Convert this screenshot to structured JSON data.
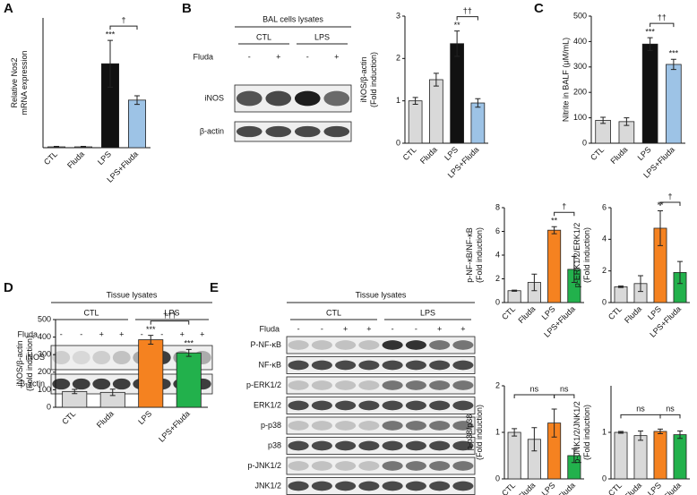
{
  "panels": [
    "A",
    "B",
    "C",
    "D",
    "E"
  ],
  "blots": [
    {
      "title": "BAL cells lysates",
      "groups": [
        "CTL",
        "LPS"
      ],
      "treatment": "Fluda",
      "signs": [
        "-",
        "+",
        "-",
        "+"
      ],
      "rows": [
        "iNOS",
        "β-actin"
      ]
    },
    {
      "title": "Tissue lysates",
      "groups": [
        "CTL",
        "LPS"
      ],
      "treatment": "Fluda",
      "signs": [
        "-",
        "-",
        "+",
        "+",
        "-",
        "-",
        "+",
        "+"
      ],
      "rows": [
        "iNOS",
        "β-actin"
      ]
    },
    {
      "title": "Tissue lysates",
      "groups": [
        "CTL",
        "LPS"
      ],
      "treatment": "Fluda",
      "signs": [
        "-",
        "-",
        "+",
        "+",
        "-",
        "-",
        "+",
        "+"
      ],
      "rows": [
        "P-NF-κB",
        "NF-κB",
        "p-ERK1/2",
        "ERK1/2",
        "p-p38",
        "p38",
        "p-JNK1/2",
        "JNK1/2"
      ]
    }
  ],
  "chart_data": [
    {
      "type": "bar",
      "ylabel": [
        "Relative Nos2",
        "mRNA expression"
      ],
      "categories": [
        "CTL",
        "Fluda",
        "LPS",
        "LPS+Fluda"
      ],
      "values": [
        1,
        1,
        97,
        55
      ],
      "errors": [
        0.5,
        0.5,
        27,
        5
      ],
      "colors": [
        "#d9d9d9",
        "#d9d9d9",
        "#111111",
        "#9dc3e6"
      ],
      "ylim": [
        0,
        150
      ],
      "annotations": [
        {
          "text": "***",
          "at": "LPS"
        },
        {
          "text": "†",
          "between": [
            "LPS",
            "LPS+Fluda"
          ]
        }
      ]
    },
    {
      "type": "bar",
      "ylabel": [
        "iNOS/β-actin",
        "(Fold induction)"
      ],
      "categories": [
        "CTL",
        "Fluda",
        "LPS",
        "LPS+Fluda"
      ],
      "values": [
        1.0,
        1.5,
        2.35,
        0.95
      ],
      "errors": [
        0.08,
        0.15,
        0.3,
        0.1
      ],
      "colors": [
        "#d9d9d9",
        "#d9d9d9",
        "#111111",
        "#9dc3e6"
      ],
      "ylim": [
        0,
        3
      ],
      "yticks": [
        0,
        1,
        2,
        3
      ],
      "annotations": [
        {
          "text": "**",
          "at": "LPS"
        },
        {
          "text": "††",
          "between": [
            "LPS",
            "LPS+Fluda"
          ]
        }
      ]
    },
    {
      "type": "bar",
      "ylabel": [
        "Nitrite in BALF (μM/mL)"
      ],
      "categories": [
        "CTL",
        "Fluda",
        "LPS",
        "LPS+Fluda"
      ],
      "values": [
        90,
        85,
        390,
        310
      ],
      "errors": [
        12,
        15,
        25,
        20
      ],
      "colors": [
        "#d9d9d9",
        "#d9d9d9",
        "#111111",
        "#9dc3e6"
      ],
      "ylim": [
        0,
        500
      ],
      "yticks": [
        0,
        100,
        200,
        300,
        400,
        500
      ],
      "annotations": [
        {
          "text": "***",
          "at": "LPS"
        },
        {
          "text": "***",
          "at": "LPS+Fluda"
        },
        {
          "text": "††",
          "between": [
            "LPS",
            "LPS+Fluda"
          ]
        }
      ]
    },
    {
      "type": "bar",
      "ylabel": [
        "iNOS/β-actin",
        "(Fold induction)"
      ],
      "categories": [
        "CTL",
        "Fluda",
        "LPS",
        "LPS+Fluda"
      ],
      "values": [
        90,
        85,
        385,
        310
      ],
      "errors": [
        12,
        18,
        25,
        20
      ],
      "colors": [
        "#d9d9d9",
        "#d9d9d9",
        "#f58220",
        "#22b14c"
      ],
      "ylim": [
        0,
        500
      ],
      "yticks": [
        0,
        100,
        200,
        300,
        400,
        500
      ],
      "annotations": [
        {
          "text": "***",
          "at": "LPS"
        },
        {
          "text": "***",
          "at": "LPS+Fluda"
        },
        {
          "text": "†††",
          "between": [
            "LPS",
            "LPS+Fluda"
          ]
        }
      ]
    },
    {
      "type": "bar",
      "ylabel": [
        "p-NF-κB/NF-κB",
        "(Fold induction)"
      ],
      "categories": [
        "CTL",
        "Fluda",
        "LPS",
        "LPS+Fluda"
      ],
      "values": [
        1,
        1.7,
        6.1,
        2.8
      ],
      "errors": [
        0.05,
        0.7,
        0.3,
        1.1
      ],
      "colors": [
        "#d9d9d9",
        "#d9d9d9",
        "#f58220",
        "#22b14c"
      ],
      "ylim": [
        0,
        8
      ],
      "yticks": [
        0,
        2,
        4,
        6,
        8
      ],
      "annotations": [
        {
          "text": "**",
          "at": "LPS"
        },
        {
          "text": "†",
          "between": [
            "LPS",
            "LPS+Fluda"
          ]
        }
      ]
    },
    {
      "type": "bar",
      "ylabel": [
        "p-ERK1/2/ERK1/2",
        "(Fold induction)"
      ],
      "categories": [
        "CTL",
        "Fluda",
        "LPS",
        "LPS+Fluda"
      ],
      "values": [
        1,
        1.2,
        4.7,
        1.9
      ],
      "errors": [
        0.05,
        0.5,
        1.1,
        0.7
      ],
      "colors": [
        "#d9d9d9",
        "#d9d9d9",
        "#f58220",
        "#22b14c"
      ],
      "ylim": [
        0,
        6
      ],
      "yticks": [
        0,
        2,
        4,
        6
      ],
      "annotations": [
        {
          "text": "**",
          "at": "LPS"
        },
        {
          "text": "†",
          "between": [
            "LPS",
            "LPS+Fluda"
          ]
        }
      ]
    },
    {
      "type": "bar",
      "ylabel": [
        "p-p38/p38",
        "(Fold induction)"
      ],
      "categories": [
        "CTL",
        "Fluda",
        "LPS",
        "LPS+Fluda"
      ],
      "values": [
        1.0,
        0.85,
        1.2,
        0.5
      ],
      "errors": [
        0.08,
        0.25,
        0.3,
        0.15
      ],
      "colors": [
        "#d9d9d9",
        "#d9d9d9",
        "#f58220",
        "#22b14c"
      ],
      "ylim": [
        0,
        2
      ],
      "yticks": [
        0,
        1,
        2
      ],
      "annotations": [
        {
          "text": "ns",
          "between": [
            "CTL",
            "LPS"
          ]
        },
        {
          "text": "ns",
          "between": [
            "LPS",
            "LPS+Fluda"
          ]
        }
      ]
    },
    {
      "type": "bar",
      "ylabel": [
        "p-JNK1/2/JNK1/2",
        "(Fold induction)"
      ],
      "categories": [
        "CTL",
        "Fluda",
        "LPS",
        "LPS+Fluda"
      ],
      "values": [
        1.0,
        0.93,
        1.02,
        0.95
      ],
      "errors": [
        0.02,
        0.1,
        0.05,
        0.08
      ],
      "colors": [
        "#d9d9d9",
        "#d9d9d9",
        "#f58220",
        "#22b14c"
      ],
      "ylim": [
        0,
        2
      ],
      "yticks": [
        0,
        1
      ],
      "annotations": [
        {
          "text": "ns",
          "between": [
            "CTL",
            "LPS"
          ]
        },
        {
          "text": "ns",
          "between": [
            "LPS",
            "LPS+Fluda"
          ]
        }
      ]
    }
  ]
}
